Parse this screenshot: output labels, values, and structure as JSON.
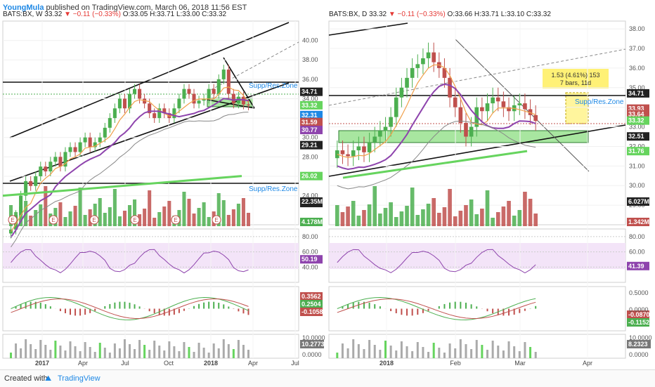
{
  "header": {
    "author": "YoungMula",
    "published": "published on TradingView.com, March 06, 2018 11:56 EST"
  },
  "weekly": {
    "symbol": "BATS:BX, W",
    "last": "33.32",
    "change": "▼ −0.11 (−0.33%)",
    "o": "O:33.05",
    "h": "H:33.71",
    "l": "L:33.00",
    "c": "C:33.32",
    "zone_label_1": "Supp/Res.Zone",
    "zone_label_2": "Supp/Res.Zone",
    "watermark": "BX, W"
  },
  "daily": {
    "symbol": "BATS:BX, D",
    "last": "33.32",
    "change": "▼ −0.11 (−0.33%)",
    "o": "O:33.66",
    "h": "H:33.71",
    "l": "L:33.10",
    "c": "C:33.32",
    "zone_label": "Supp/Res.Zone",
    "measure_line1": "1.53 (4.61%) 153",
    "measure_line2": "7 bars, 11d"
  },
  "footer": {
    "created_with": "Created with",
    "brand": "TradingView"
  },
  "colors": {
    "up": "#4caf50",
    "down": "#c0504d",
    "green_ma": "#66d45e",
    "purple": "#8e44ad",
    "rsi_band": "#f1e0f7",
    "zone": "#a8e6a0",
    "measure": "#fff59d"
  },
  "chart_data": [
    {
      "type": "line",
      "title": "BATS:BX, W",
      "x_ticks": [
        "2017",
        "Apr",
        "Jul",
        "Oct",
        "2018",
        "Apr",
        "Jul"
      ],
      "y_ticks": [
        24.0,
        26.0,
        28.0,
        30.0,
        32.0,
        34.0,
        36.0,
        38.0,
        40.0
      ],
      "y_range": [
        21.0,
        42.0
      ],
      "price_labels": [
        {
          "value": 34.71,
          "text": "34.71",
          "color": "#222222"
        },
        {
          "value": 33.32,
          "text": "33.32",
          "color": "#66d45e"
        },
        {
          "value": 32.31,
          "text": "32.31",
          "color": "#1e88e5"
        },
        {
          "value": 31.59,
          "text": "31.59",
          "color": "#c0504d"
        },
        {
          "value": 30.77,
          "text": "30.77",
          "color": "#8e44ad"
        },
        {
          "value": 29.21,
          "text": "29.21",
          "color": "#222222"
        },
        {
          "value": 26.02,
          "text": "26.02",
          "color": "#66d45e"
        },
        {
          "value": 23.24,
          "text": "23.24",
          "color": "#222222"
        }
      ],
      "close_series": [
        20.5,
        22,
        24,
        25.5,
        25,
        26,
        27,
        26.5,
        27.5,
        28,
        27,
        28.5,
        29,
        28.5,
        29.5,
        30,
        29,
        29.5,
        30,
        31,
        32,
        33,
        34,
        33,
        34.5,
        35,
        34,
        33.5,
        32.5,
        32,
        33,
        32.5,
        32,
        33,
        34,
        35,
        34.5,
        33.5,
        33.8,
        34,
        35,
        34.5,
        36,
        37,
        34.5,
        33.5,
        34.2,
        33.4,
        33.3
      ],
      "ma200_range": [
        24.0,
        26.02
      ],
      "volume_labels": [
        "22.35M",
        "4.178M"
      ],
      "earnings_markers": [
        "E",
        "E",
        "E",
        "E",
        "E",
        "E"
      ],
      "rsi": {
        "levels": [
          40,
          60,
          80
        ],
        "value": "50.19"
      },
      "macd": {
        "values": [
          "0.3562",
          "0.2504",
          "-0.1058"
        ]
      },
      "volume_osc": {
        "ticks": [
          "10.0000",
          "0.0000"
        ],
        "value": "10.2773"
      }
    },
    {
      "type": "line",
      "title": "BATS:BX, D",
      "x_ticks": [
        "2018",
        "Feb",
        "Mar",
        "Apr"
      ],
      "y_ticks": [
        29.0,
        30.0,
        31.0,
        32.0,
        33.0,
        34.0,
        35.0,
        36.0,
        37.0,
        38.0
      ],
      "y_range": [
        28.0,
        38.4
      ],
      "price_labels": [
        {
          "value": 34.71,
          "text": "34.71",
          "color": "#222222"
        },
        {
          "value": 33.93,
          "text": "33.93",
          "color": "#c0504d"
        },
        {
          "value": 33.64,
          "text": "33.64",
          "color": "#c0504d"
        },
        {
          "value": 33.32,
          "text": "33.32",
          "color": "#66d45e"
        },
        {
          "value": 32.51,
          "text": "32.51",
          "color": "#222222"
        },
        {
          "value": 31.76,
          "text": "31.76",
          "color": "#66d45e"
        }
      ],
      "close_series": [
        31.8,
        31.6,
        31.5,
        31.8,
        32,
        31.7,
        32.2,
        32.5,
        32.8,
        33,
        33.5,
        34.5,
        35,
        35.5,
        36,
        36.2,
        36.5,
        36.8,
        36.3,
        36,
        35.5,
        34.5,
        34,
        33.2,
        32.5,
        33,
        34,
        33.8,
        34.2,
        34.5,
        34.3,
        34,
        33.8,
        34.1,
        34.2,
        33.9,
        33.6,
        33.3
      ],
      "volume_labels": [
        "6.027M",
        "1.342M"
      ],
      "rsi": {
        "levels": [
          40,
          60,
          80
        ],
        "value": "41.39"
      },
      "macd": {
        "ticks": [
          "0.5000",
          "0.0000"
        ],
        "values": [
          "-0.0870",
          "-0.1152"
        ]
      },
      "volume_osc": {
        "ticks": [
          "10.0000",
          "0.0000"
        ],
        "value": "8.2323"
      }
    }
  ]
}
